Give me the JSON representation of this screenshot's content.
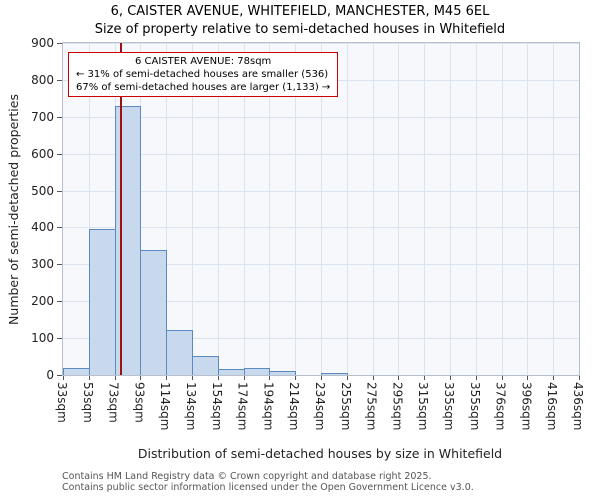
{
  "title": "6, CAISTER AVENUE, WHITEFIELD, MANCHESTER, M45 6EL",
  "subtitle": "Size of property relative to semi-detached houses in Whitefield",
  "chart_data": {
    "type": "bar",
    "bin_labels": [
      "33sqm",
      "53sqm",
      "73sqm",
      "93sqm",
      "114sqm",
      "134sqm",
      "154sqm",
      "174sqm",
      "194sqm",
      "214sqm",
      "234sqm",
      "255sqm",
      "275sqm",
      "295sqm",
      "315sqm",
      "335sqm",
      "355sqm",
      "376sqm",
      "396sqm",
      "416sqm",
      "436sqm"
    ],
    "values": [
      20,
      395,
      730,
      340,
      122,
      52,
      15,
      20,
      10,
      0,
      5,
      0,
      0,
      0,
      0,
      0,
      0,
      0,
      0,
      0
    ],
    "ylim": [
      0,
      900
    ],
    "ytick_step": 100,
    "grid": true,
    "legend": "none",
    "xlabel": "Distribution of semi-detached houses by size in Whitefield",
    "ylabel": "Number of semi-detached properties",
    "bar_fill": "#c8d9ee",
    "bar_border": "#5b8ac0",
    "marker": {
      "label": "78sqm",
      "value_sqm": 78,
      "bin_index": 2,
      "fraction": 0.25,
      "color": "#a01010"
    },
    "annotation": {
      "line1": "6 CAISTER AVENUE: 78sqm",
      "line2": "← 31% of semi-detached houses are smaller (536)",
      "line3": "67% of semi-detached houses are larger (1,133) →",
      "border_color": "#cc0000"
    }
  },
  "footer": {
    "line1": "Contains HM Land Registry data © Crown copyright and database right 2025.",
    "line2": "Contains public sector information licensed under the Open Government Licence v3.0."
  }
}
